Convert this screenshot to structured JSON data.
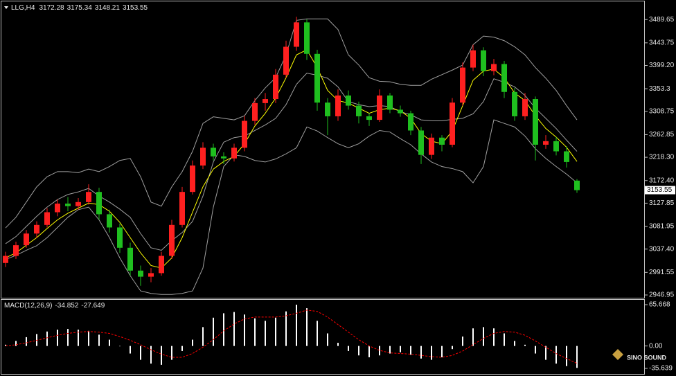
{
  "chart_data": [
    {
      "type": "candlestick",
      "symbol": "LLG,H4",
      "up_color": "#ff2020",
      "down_color": "#1fbf1f",
      "candles": [
        [
          3010,
          3032,
          3002,
          3024
        ],
        [
          3024,
          3052,
          3018,
          3045
        ],
        [
          3045,
          3075,
          3040,
          3068
        ],
        [
          3068,
          3092,
          3060,
          3085
        ],
        [
          3085,
          3118,
          3080,
          3110
        ],
        [
          3110,
          3135,
          3102,
          3127
        ],
        [
          3127,
          3140,
          3112,
          3122
        ],
        [
          3122,
          3138,
          3115,
          3130
        ],
        [
          3130,
          3165,
          3125,
          3150
        ],
        [
          3150,
          3158,
          3095,
          3106
        ],
        [
          3106,
          3115,
          3070,
          3080
        ],
        [
          3080,
          3088,
          3030,
          3040
        ],
        [
          3040,
          3050,
          2985,
          2995
        ],
        [
          2995,
          3005,
          2965,
          2983
        ],
        [
          2983,
          3000,
          2972,
          2990
        ],
        [
          2990,
          3032,
          2985,
          3024
        ],
        [
          3024,
          3095,
          3018,
          3085
        ],
        [
          3085,
          3160,
          3080,
          3150
        ],
        [
          3150,
          3212,
          3145,
          3202
        ],
        [
          3202,
          3248,
          3195,
          3237
        ],
        [
          3237,
          3245,
          3212,
          3220
        ],
        [
          3220,
          3228,
          3205,
          3216
        ],
        [
          3216,
          3245,
          3210,
          3237
        ],
        [
          3237,
          3300,
          3230,
          3290
        ],
        [
          3290,
          3335,
          3282,
          3325
        ],
        [
          3325,
          3345,
          3310,
          3333
        ],
        [
          3333,
          3392,
          3325,
          3381
        ],
        [
          3381,
          3448,
          3375,
          3436
        ],
        [
          3436,
          3495,
          3428,
          3484
        ],
        [
          3484,
          3490,
          3410,
          3422
        ],
        [
          3422,
          3430,
          3310,
          3326
        ],
        [
          3326,
          3335,
          3262,
          3299
        ],
        [
          3299,
          3352,
          3290,
          3340
        ],
        [
          3340,
          3350,
          3312,
          3320
        ],
        [
          3320,
          3328,
          3285,
          3299
        ],
        [
          3299,
          3305,
          3280,
          3292
        ],
        [
          3292,
          3352,
          3288,
          3340
        ],
        [
          3340,
          3345,
          3305,
          3312
        ],
        [
          3312,
          3320,
          3298,
          3305
        ],
        [
          3305,
          3310,
          3262,
          3271
        ],
        [
          3271,
          3278,
          3205,
          3223
        ],
        [
          3223,
          3265,
          3215,
          3257
        ],
        [
          3257,
          3262,
          3230,
          3243
        ],
        [
          3243,
          3335,
          3238,
          3326
        ],
        [
          3326,
          3405,
          3320,
          3395
        ],
        [
          3395,
          3440,
          3388,
          3429
        ],
        [
          3429,
          3435,
          3378,
          3388
        ],
        [
          3388,
          3412,
          3380,
          3402
        ],
        [
          3402,
          3408,
          3335,
          3347
        ],
        [
          3347,
          3355,
          3290,
          3299
        ],
        [
          3299,
          3345,
          3292,
          3333
        ],
        [
          3333,
          3338,
          3212,
          3243
        ],
        [
          3243,
          3262,
          3235,
          3250
        ],
        [
          3250,
          3258,
          3222,
          3230
        ],
        [
          3230,
          3240,
          3198,
          3209
        ],
        [
          3172.28,
          3175.34,
          3148.21,
          3153.55
        ]
      ],
      "lines": [
        {
          "color": "#a0a0a0",
          "values": [
            3079,
            3100,
            3130,
            3160,
            3180,
            3190,
            3190,
            3188,
            3195,
            3190,
            3200,
            3212,
            3216,
            3180,
            3130,
            3122,
            3160,
            3190,
            3230,
            3285,
            3298,
            3295,
            3292,
            3300,
            3330,
            3355,
            3375,
            3420,
            3488,
            3491,
            3491,
            3491,
            3470,
            3420,
            3400,
            3375,
            3368,
            3367,
            3362,
            3360,
            3360,
            3372,
            3381,
            3390,
            3400,
            3440,
            3457,
            3455,
            3448,
            3436,
            3420,
            3395,
            3374,
            3350,
            3320,
            3292
          ]
        },
        {
          "color": "#a0a0a0",
          "values": [
            3048,
            3062,
            3082,
            3102,
            3120,
            3135,
            3145,
            3150,
            3157,
            3142,
            3130,
            3116,
            3100,
            3068,
            3040,
            3035,
            3054,
            3070,
            3092,
            3142,
            3209,
            3248,
            3257,
            3260,
            3271,
            3282,
            3295,
            3322,
            3362,
            3384,
            3380,
            3374,
            3357,
            3328,
            3322,
            3318,
            3320,
            3318,
            3308,
            3302,
            3292,
            3290,
            3290,
            3293,
            3295,
            3304,
            3328,
            3373,
            3366,
            3357,
            3340,
            3315,
            3295,
            3275,
            3252,
            3230
          ]
        },
        {
          "color": "#a0a0a0",
          "values": [
            3017,
            3025,
            3035,
            3044,
            3060,
            3080,
            3100,
            3115,
            3120,
            3095,
            3060,
            3020,
            2985,
            2955,
            2950,
            2948,
            2948,
            2950,
            2955,
            3000,
            3120,
            3200,
            3223,
            3220,
            3212,
            3209,
            3215,
            3225,
            3237,
            3278,
            3270,
            3257,
            3245,
            3237,
            3245,
            3260,
            3271,
            3268,
            3255,
            3243,
            3225,
            3209,
            3200,
            3196,
            3190,
            3168,
            3200,
            3292,
            3285,
            3278,
            3260,
            3235,
            3216,
            3200,
            3185,
            3168
          ]
        },
        {
          "color": "#ffff00",
          "values": [
            3020,
            3030,
            3045,
            3060,
            3078,
            3095,
            3108,
            3118,
            3128,
            3125,
            3112,
            3090,
            3060,
            3030,
            3005,
            3000,
            3020,
            3060,
            3110,
            3160,
            3195,
            3210,
            3220,
            3245,
            3280,
            3305,
            3335,
            3375,
            3420,
            3430,
            3395,
            3350,
            3330,
            3325,
            3315,
            3305,
            3312,
            3315,
            3310,
            3295,
            3265,
            3250,
            3245,
            3270,
            3320,
            3370,
            3388,
            3392,
            3375,
            3345,
            3330,
            3300,
            3275,
            3258,
            3238,
            3210
          ]
        }
      ],
      "ylim": [
        2941.5,
        3525.4
      ],
      "yticks": [
        3489.65,
        3443.75,
        {
          "value": 3399.2,
          "label": "3399.20"
        },
        3353.3,
        3308.75,
        3262.85,
        {
          "value": 3218.3,
          "label": "3218.30"
        },
        {
          "value": 3172.4,
          "label": "3172.40"
        },
        3127.85,
        3081.95,
        {
          "value": 3037.4,
          "label": "3037.40"
        },
        2991.55,
        2946.95
      ]
    },
    {
      "type": "macd",
      "title": "MACD(12,26,9)",
      "histogram": {
        "color": "#ffffff",
        "values": [
          2,
          8,
          14,
          19,
          23,
          26,
          27,
          26,
          24,
          18,
          10,
          0,
          -12,
          -22,
          -28,
          -30,
          -22,
          -8,
          10,
          30,
          45,
          52,
          54,
          50,
          44,
          40,
          45,
          55,
          65.668,
          60,
          40,
          20,
          5,
          -8,
          -15,
          -18,
          -15,
          -12,
          -10,
          -14,
          -20,
          -22,
          -18,
          -5,
          15,
          28,
          30,
          28,
          20,
          8,
          2,
          -12,
          -22,
          -28,
          -32,
          -34.852
        ]
      },
      "signal": {
        "color": "#ff0000",
        "values": [
          0,
          2,
          5,
          9,
          13,
          17,
          20,
          22,
          23,
          22,
          20,
          15,
          9,
          2,
          -6,
          -13,
          -18,
          -18,
          -12,
          -2,
          10,
          24,
          35,
          43,
          46,
          46,
          46,
          48,
          52,
          57,
          55,
          46,
          34,
          22,
          10,
          0,
          -7,
          -11,
          -12,
          -13,
          -15,
          -17,
          -18,
          -15,
          -8,
          2,
          12,
          20,
          23,
          22,
          17,
          8,
          -2,
          -12,
          -20,
          -27.649
        ]
      },
      "ylim": [
        -35.639,
        65.668
      ],
      "yticks": [
        65.668,
        {
          "value": 0,
          "label": "0.00"
        },
        -35.639
      ]
    }
  ],
  "watermark": "SINO SOUND"
}
